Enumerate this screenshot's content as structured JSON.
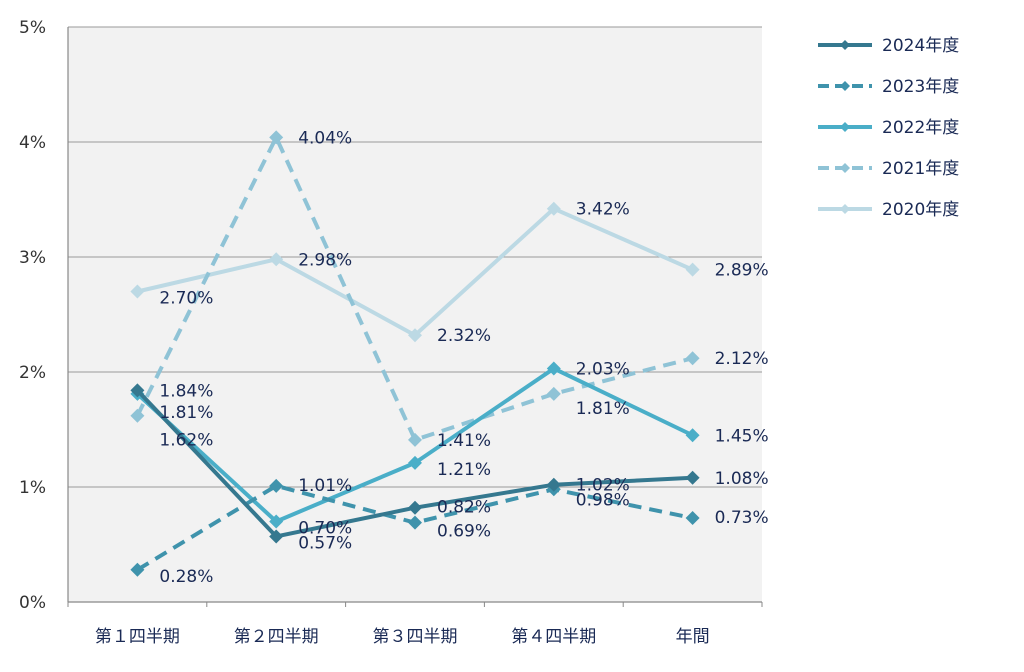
{
  "chart_data": {
    "type": "line",
    "categories": [
      "第１四半期",
      "第２四半期",
      "第３四半期",
      "第４四半期",
      "年間"
    ],
    "ylim": [
      0,
      5
    ],
    "yticks": [
      "0%",
      "1%",
      "2%",
      "3%",
      "4%",
      "5%"
    ],
    "grid": true,
    "legend": "right",
    "series": [
      {
        "name": "2024年度",
        "values": [
          1.84,
          0.57,
          0.82,
          1.02,
          1.08
        ],
        "labels": [
          "1.84%",
          "0.57%",
          "0.82%",
          "1.02%",
          "1.08%"
        ],
        "color": "#35788f",
        "dash": false
      },
      {
        "name": "2023年度",
        "values": [
          0.28,
          1.01,
          0.69,
          0.98,
          0.73
        ],
        "labels": [
          "0.28%",
          "1.01%",
          "0.69%",
          "0.98%",
          "0.73%"
        ],
        "color": "#3f93ac",
        "dash": true
      },
      {
        "name": "2022年度",
        "values": [
          1.81,
          0.7,
          1.21,
          2.03,
          1.45
        ],
        "labels": [
          "1.81%",
          "0.70%",
          "1.21%",
          "2.03%",
          "1.45%"
        ],
        "color": "#4aaec8",
        "dash": false
      },
      {
        "name": "2021年度",
        "values": [
          1.62,
          4.04,
          1.41,
          1.81,
          2.12
        ],
        "labels": [
          "1.62%",
          "4.04%",
          "1.41%",
          "1.81%",
          "2.12%"
        ],
        "color": "#8fc3d6",
        "dash": true
      },
      {
        "name": "2020年度",
        "values": [
          2.7,
          2.98,
          2.32,
          3.42,
          2.89
        ],
        "labels": [
          "2.70%",
          "2.98%",
          "2.32%",
          "3.42%",
          "2.89%"
        ],
        "color": "#bcd9e4",
        "dash": false
      }
    ]
  }
}
